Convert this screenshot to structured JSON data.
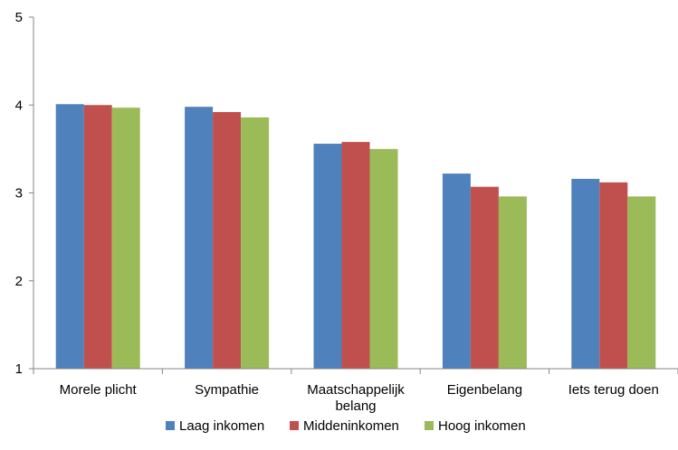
{
  "chart_data": {
    "type": "bar",
    "title": "",
    "xlabel": "",
    "ylabel": "",
    "ylim": [
      1,
      5
    ],
    "yticks": [
      1,
      2,
      3,
      4,
      5
    ],
    "grid": false,
    "legend_position": "bottom",
    "categories": [
      [
        "Morele plicht"
      ],
      [
        "Sympathie"
      ],
      [
        "Maatschappelijk",
        "belang"
      ],
      [
        "Eigenbelang"
      ],
      [
        "Iets terug doen"
      ]
    ],
    "series": [
      {
        "name": "Laag inkomen",
        "color": "#4F81BD",
        "values": [
          4.01,
          3.98,
          3.56,
          3.22,
          3.16
        ]
      },
      {
        "name": "Middeninkomen",
        "color": "#C0504D",
        "values": [
          4.0,
          3.92,
          3.58,
          3.07,
          3.12
        ]
      },
      {
        "name": "Hoog inkomen",
        "color": "#9BBB59",
        "values": [
          3.97,
          3.86,
          3.5,
          2.96,
          2.96
        ]
      }
    ]
  }
}
